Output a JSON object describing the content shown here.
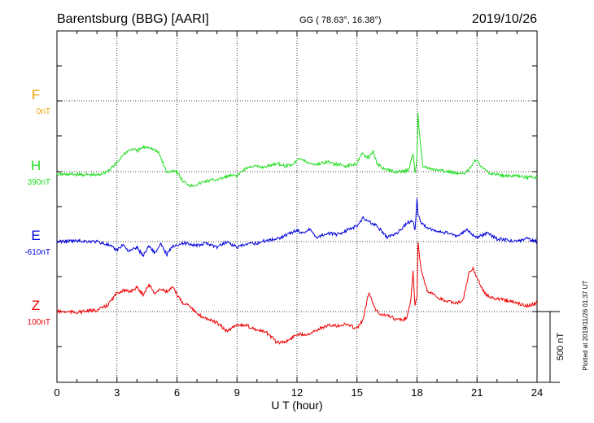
{
  "chart_data": {
    "type": "line",
    "title": "Barentsburg (BBG)  [AARI]",
    "subtitle": "GG ( 78.63°,  16.38°)",
    "date": "2019/10/26",
    "xlabel": "U T (hour)",
    "xlim": [
      0,
      24
    ],
    "x_ticks": [
      "0",
      "3",
      "6",
      "9",
      "12",
      "15",
      "18",
      "21",
      "24"
    ],
    "grid": true,
    "scale_bar_label": "500 nT",
    "scale_bar_nT": 500,
    "footer": "Plotted at 2019/11/26 01:37 UT",
    "colors": {
      "F": "#f0a000",
      "H": "#22dd22",
      "E": "#0000dd",
      "Z": "#ee0000",
      "axis": "#000000",
      "grid": "#000000"
    },
    "series": [
      {
        "name": "F",
        "baseline": "0nT",
        "x": [],
        "y": []
      },
      {
        "name": "H",
        "baseline": "390nT",
        "x": [
          0,
          1,
          2,
          2.5,
          3,
          3.3,
          3.6,
          3.8,
          4,
          4.3,
          4.6,
          4.9,
          5.1,
          5.3,
          5.5,
          5.8,
          6,
          6.3,
          6.7,
          7,
          7.4,
          7.8,
          8.2,
          8.6,
          9,
          9.4,
          9.8,
          10.2,
          10.6,
          11,
          11.4,
          11.8,
          12.1,
          12.3,
          12.6,
          13,
          13.5,
          14,
          14.5,
          15,
          15.2,
          15.4,
          15.6,
          15.8,
          16,
          16.3,
          16.6,
          17,
          17.4,
          17.6,
          17.8,
          17.9,
          18,
          18.05,
          18.1,
          18.3,
          18.6,
          19,
          19.5,
          20,
          20.4,
          20.7,
          20.9,
          21.1,
          21.3,
          21.6,
          22,
          22.5,
          23,
          23.5,
          24
        ],
        "y": [
          -20,
          -20,
          -25,
          0,
          60,
          120,
          150,
          160,
          145,
          170,
          175,
          150,
          130,
          60,
          -10,
          10,
          0,
          -70,
          -100,
          -90,
          -70,
          -60,
          -50,
          -30,
          -30,
          20,
          40,
          30,
          40,
          60,
          40,
          50,
          100,
          80,
          60,
          50,
          70,
          50,
          40,
          60,
          130,
          110,
          100,
          150,
          60,
          20,
          10,
          0,
          0,
          20,
          130,
          -10,
          100,
          420,
          300,
          40,
          20,
          10,
          0,
          -10,
          -10,
          30,
          90,
          60,
          20,
          -10,
          -20,
          -30,
          -30,
          -40,
          -40
        ]
      },
      {
        "name": "E",
        "baseline": "-610nT",
        "x": [
          0,
          1,
          2,
          2.5,
          3,
          3.3,
          3.6,
          4,
          4.3,
          4.6,
          4.9,
          5.2,
          5.5,
          5.8,
          6,
          6.5,
          7,
          7.5,
          8,
          8.5,
          9,
          9.5,
          10,
          10.5,
          11,
          11.5,
          12,
          12.3,
          12.6,
          13,
          13.5,
          14,
          14.5,
          15,
          15.3,
          15.6,
          16,
          16.5,
          17,
          17.5,
          17.8,
          17.9,
          18,
          18.05,
          18.2,
          18.5,
          19,
          19.5,
          20,
          20.5,
          21,
          21.5,
          22,
          22.5,
          23,
          23.5,
          24
        ],
        "y": [
          0,
          5,
          0,
          -20,
          -60,
          -20,
          -70,
          -40,
          -100,
          -30,
          -80,
          -20,
          -90,
          -30,
          -20,
          -10,
          -30,
          -10,
          -40,
          0,
          -40,
          -20,
          -10,
          10,
          20,
          50,
          80,
          60,
          90,
          30,
          60,
          50,
          80,
          110,
          170,
          140,
          110,
          30,
          60,
          130,
          150,
          80,
          300,
          200,
          130,
          100,
          70,
          60,
          40,
          80,
          30,
          60,
          20,
          10,
          0,
          20,
          0
        ]
      },
      {
        "name": "Z",
        "baseline": "100nT",
        "x": [
          0,
          1,
          2,
          2.5,
          3,
          3.3,
          3.6,
          4,
          4.3,
          4.6,
          4.9,
          5.2,
          5.5,
          5.8,
          6,
          6.3,
          6.6,
          7,
          7.5,
          8,
          8.5,
          9,
          9.5,
          10,
          10.5,
          11,
          11.5,
          12,
          12.5,
          13,
          13.5,
          14,
          14.5,
          15,
          15.3,
          15.6,
          15.9,
          16.2,
          16.6,
          17,
          17.5,
          17.7,
          17.8,
          17.9,
          18,
          18.05,
          18.2,
          18.5,
          19,
          19.5,
          20,
          20.3,
          20.6,
          20.8,
          21,
          21.3,
          21.6,
          22,
          22.5,
          23,
          23.5,
          24
        ],
        "y": [
          0,
          -5,
          10,
          40,
          130,
          150,
          140,
          170,
          120,
          190,
          130,
          160,
          140,
          170,
          120,
          60,
          50,
          -20,
          -50,
          -80,
          -140,
          -90,
          -100,
          -130,
          -150,
          -220,
          -210,
          -160,
          -160,
          -130,
          -100,
          -100,
          -90,
          -120,
          -60,
          140,
          20,
          -20,
          -30,
          -60,
          -50,
          100,
          280,
          40,
          100,
          480,
          300,
          150,
          100,
          70,
          60,
          80,
          270,
          300,
          240,
          150,
          100,
          90,
          80,
          60,
          40,
          60
        ]
      }
    ]
  }
}
